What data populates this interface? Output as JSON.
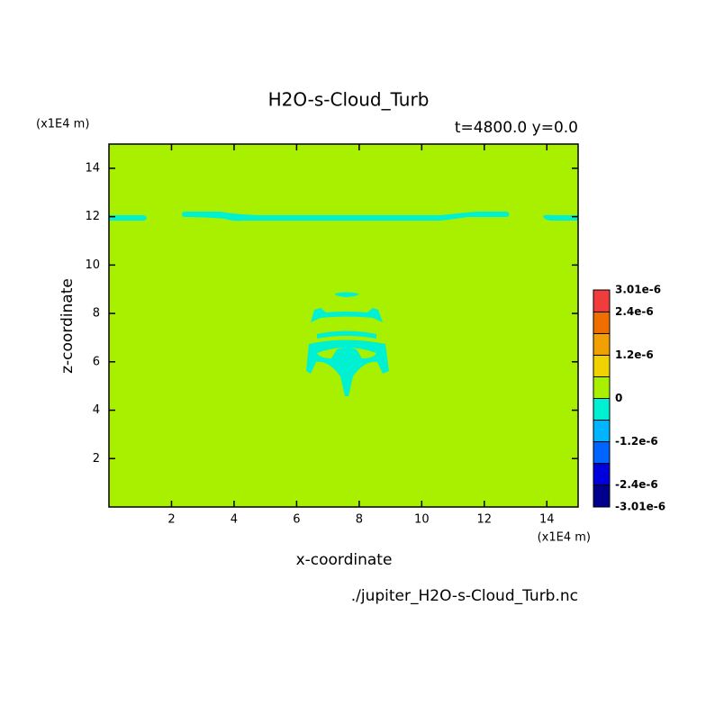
{
  "chart_data": {
    "type": "contour",
    "title": "H2O-s-Cloud_Turb",
    "subtitle": "t=4800.0 y=0.0",
    "x_label": "x-coordinate",
    "y_label": "z-coordinate",
    "x_unit": "(x1E4 m)",
    "y_unit": "(x1E4 m)",
    "source": "./jupiter_H2O-s-Cloud_Turb.nc",
    "xlim": [
      0,
      15
    ],
    "ylim": [
      0,
      15
    ],
    "xticks": [
      2,
      4,
      6,
      8,
      10,
      12,
      14
    ],
    "yticks": [
      2,
      4,
      6,
      8,
      10,
      12,
      14
    ],
    "colorbar": {
      "lim": [
        -3.01e-06,
        3.01e-06
      ],
      "levels": [
        -3.01e-06,
        -2.4e-06,
        -1.8e-06,
        -1.2e-06,
        -6e-07,
        0,
        6e-07,
        1.2e-06,
        1.8e-06,
        2.4e-06,
        3.01e-06
      ],
      "colors": [
        "#00008c",
        "#0000dc",
        "#0064ff",
        "#00b4ff",
        "#00f0d2",
        "#a8f000",
        "#f0d200",
        "#f0a000",
        "#f06e00",
        "#f03c3c"
      ],
      "ticks": [
        {
          "value": -3.01e-06,
          "label": "-3.01e-6"
        },
        {
          "value": -2.4e-06,
          "label": "-2.4e-6"
        },
        {
          "value": -1.2e-06,
          "label": "-1.2e-6"
        },
        0,
        {
          "value": 1.2e-06,
          "label": "1.2e-6"
        },
        {
          "value": 2.4e-06,
          "label": "2.4e-6"
        },
        {
          "value": 3.01e-06,
          "label": "3.01e-6"
        }
      ]
    }
  }
}
